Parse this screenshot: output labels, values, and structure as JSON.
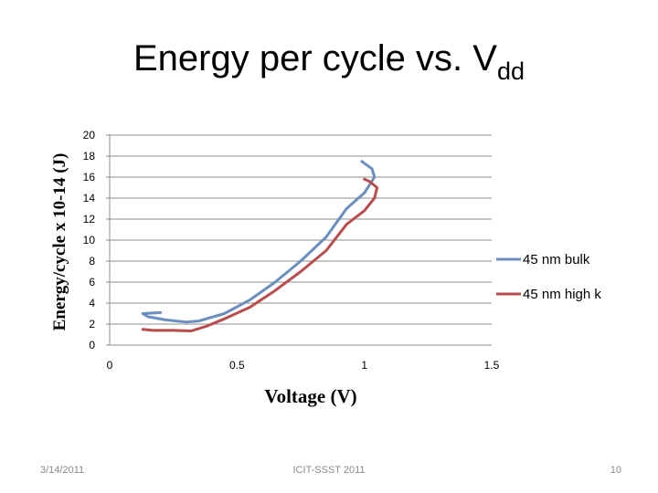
{
  "slide": {
    "title_main": "Energy per cycle vs. V",
    "title_sub": "dd"
  },
  "footer": {
    "date": "3/14/2011",
    "conference": "ICIT-SSST 2011",
    "page": "10"
  },
  "chart_data": {
    "type": "line",
    "title": "Energy per cycle vs. Vdd",
    "xlabel": "Voltage (V)",
    "ylabel": "Energy/cycle x 10-14 (J)",
    "xlim": [
      0,
      1.5
    ],
    "ylim": [
      0,
      20
    ],
    "xticks": [
      "0",
      "0.5",
      "1",
      "1.5"
    ],
    "yticks": [
      "0",
      "2",
      "4",
      "6",
      "8",
      "10",
      "12",
      "14",
      "16",
      "18",
      "20"
    ],
    "grid": true,
    "legend_position": "right",
    "series": [
      {
        "name": "45 nm bulk",
        "color": "#6a8fbf",
        "points": [
          [
            0.2,
            3.1
          ],
          [
            0.13,
            3.0
          ],
          [
            0.15,
            2.7
          ],
          [
            0.22,
            2.4
          ],
          [
            0.3,
            2.2
          ],
          [
            0.35,
            2.3
          ],
          [
            0.45,
            3.0
          ],
          [
            0.55,
            4.3
          ],
          [
            0.65,
            6.0
          ],
          [
            0.75,
            8.0
          ],
          [
            0.85,
            10.3
          ],
          [
            0.93,
            13.0
          ],
          [
            1.0,
            14.5
          ],
          [
            1.04,
            16.0
          ],
          [
            1.03,
            16.8
          ],
          [
            0.99,
            17.5
          ]
        ]
      },
      {
        "name": "45 nm high k",
        "color": "#b94d4d",
        "points": [
          [
            0.13,
            1.5
          ],
          [
            0.17,
            1.4
          ],
          [
            0.25,
            1.4
          ],
          [
            0.32,
            1.35
          ],
          [
            0.38,
            1.8
          ],
          [
            0.45,
            2.5
          ],
          [
            0.55,
            3.6
          ],
          [
            0.65,
            5.2
          ],
          [
            0.75,
            7.0
          ],
          [
            0.85,
            9.0
          ],
          [
            0.93,
            11.5
          ],
          [
            1.0,
            12.8
          ],
          [
            1.04,
            14.0
          ],
          [
            1.05,
            15.0
          ],
          [
            1.02,
            15.6
          ],
          [
            1.0,
            15.8
          ]
        ]
      }
    ]
  }
}
